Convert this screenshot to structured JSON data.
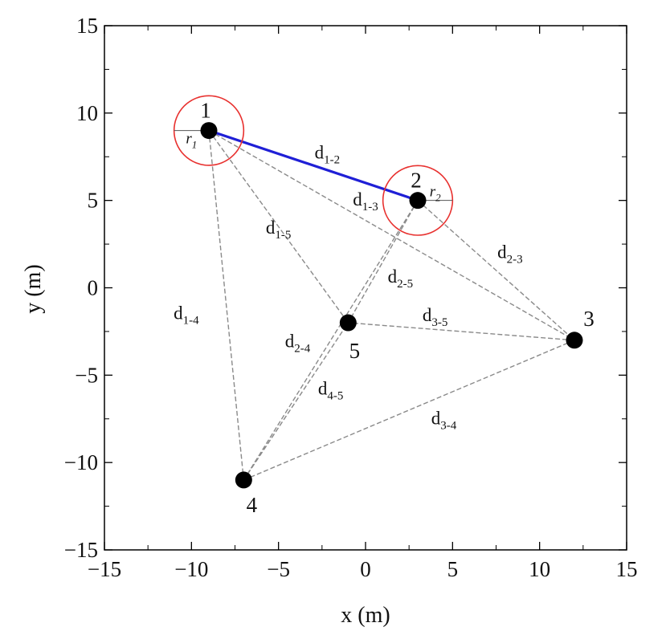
{
  "chart_data": {
    "type": "scatter",
    "xlabel": "x (m)",
    "ylabel": "y (m)",
    "xlim": [
      -15,
      15
    ],
    "ylim": [
      -15,
      15
    ],
    "xticks": [
      -15,
      -10,
      -5,
      0,
      5,
      10,
      15
    ],
    "yticks": [
      -15,
      -10,
      -5,
      0,
      5,
      10,
      15
    ],
    "tick_labels_x": [
      "−15",
      "−10",
      "−5",
      "0",
      "5",
      "10",
      "15"
    ],
    "tick_labels_y": [
      "−15",
      "−10",
      "−5",
      "0",
      "5",
      "10",
      "15"
    ],
    "grid": false,
    "nodes": [
      {
        "label": "1",
        "x": -9,
        "y": 9
      },
      {
        "label": "2",
        "x": 3,
        "y": 5
      },
      {
        "label": "3",
        "x": 12,
        "y": -3
      },
      {
        "label": "4",
        "x": -7,
        "y": -11
      },
      {
        "label": "5",
        "x": -1,
        "y": -2
      }
    ],
    "edges": [
      {
        "from": "1",
        "to": "2",
        "label": "d",
        "sub": "1-2",
        "style": "solid"
      },
      {
        "from": "1",
        "to": "3",
        "label": "d",
        "sub": "1-3",
        "style": "dashed"
      },
      {
        "from": "1",
        "to": "4",
        "label": "d",
        "sub": "1-4",
        "style": "dashed"
      },
      {
        "from": "1",
        "to": "5",
        "label": "d",
        "sub": "1-5",
        "style": "dashed"
      },
      {
        "from": "2",
        "to": "3",
        "label": "d",
        "sub": "2-3",
        "style": "dashed"
      },
      {
        "from": "2",
        "to": "4",
        "label": "d",
        "sub": "2-4",
        "style": "dashed"
      },
      {
        "from": "2",
        "to": "5",
        "label": "d",
        "sub": "2-5",
        "style": "dashed"
      },
      {
        "from": "3",
        "to": "4",
        "label": "d",
        "sub": "3-4",
        "style": "dashed"
      },
      {
        "from": "3",
        "to": "5",
        "label": "d",
        "sub": "3-5",
        "style": "dashed"
      },
      {
        "from": "4",
        "to": "5",
        "label": "d",
        "sub": "4-5",
        "style": "dashed"
      }
    ],
    "range_circles": [
      {
        "node": "1",
        "radius": 2,
        "label": "r",
        "sub": "1"
      },
      {
        "node": "2",
        "radius": 2,
        "label": "r",
        "sub": "2"
      }
    ],
    "colors": {
      "node": "#000000",
      "solid_edge": "#1f1fd6",
      "dashed_edge": "#8a8a8a",
      "circle": "#e8312f",
      "axis": "#000000"
    }
  }
}
